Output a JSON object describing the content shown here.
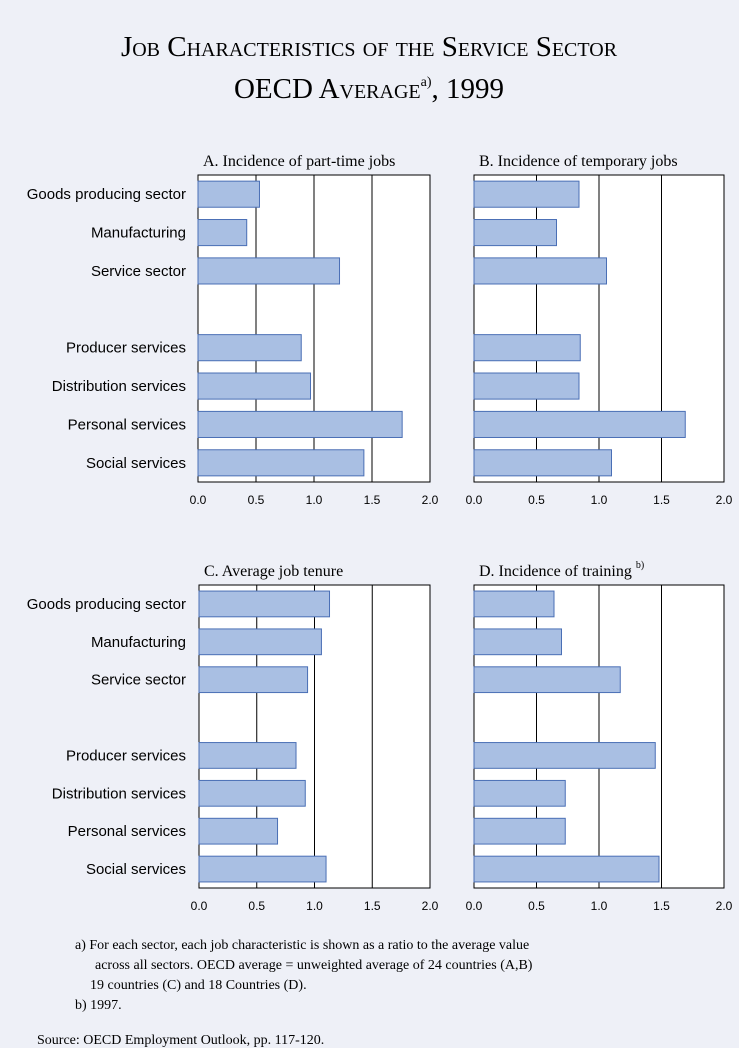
{
  "title": {
    "line1": "Job Characteristics of the Service Sector",
    "line2": "OECD Average",
    "line2_note": "a)",
    "line2_end": ", 1999"
  },
  "chart_data": [
    {
      "type": "hbar",
      "subtitle": "A. Incidence of part-time jobs",
      "categories": [
        "Goods producing sector",
        "Manufacturing",
        "Service sector",
        null,
        "Producer services",
        "Distribution services",
        "Personal services",
        "Social services"
      ],
      "values": [
        0.53,
        0.42,
        1.22,
        null,
        0.89,
        0.97,
        1.76,
        1.43
      ],
      "color": "#a9bfe3",
      "xlim": [
        0,
        2
      ],
      "xticks": [
        {
          "value": 0,
          "label": "0.0"
        },
        0.5,
        {
          "value": 1,
          "label": "1.0"
        },
        1.5,
        {
          "value": 2,
          "label": "2.0"
        }
      ],
      "grid": true
    },
    {
      "type": "hbar",
      "subtitle": "B. Incidence of temporary jobs",
      "values": [
        0.84,
        0.66,
        1.06,
        null,
        0.85,
        0.84,
        1.69,
        1.1
      ],
      "color": "#a9bfe3",
      "xlim": [
        0,
        2
      ],
      "xticks": [
        {
          "value": 0,
          "label": "0.0"
        },
        0.5,
        {
          "value": 1,
          "label": "1.0"
        },
        1.5,
        {
          "value": 2,
          "label": "2.0"
        }
      ],
      "grid": true
    },
    {
      "type": "hbar",
      "subtitle": "C. Average job tenure",
      "categories": [
        "Goods producing sector",
        "Manufacturing",
        "Service sector",
        null,
        "Producer services",
        "Distribution services",
        "Personal services",
        "Social services"
      ],
      "values": [
        1.13,
        1.06,
        0.94,
        null,
        0.84,
        0.92,
        0.68,
        1.1
      ],
      "color": "#a9bfe3",
      "xlim": [
        0,
        2
      ],
      "xticks": [
        {
          "value": 0,
          "label": "0.0"
        },
        0.5,
        {
          "value": 1,
          "label": "1.0"
        },
        1.5,
        {
          "value": 2,
          "label": "2.0"
        }
      ],
      "grid": true
    },
    {
      "type": "hbar",
      "subtitle": "D. Incidence of training",
      "subtitle_note": "b)",
      "values": [
        0.64,
        0.7,
        1.17,
        null,
        1.45,
        0.73,
        0.73,
        1.48
      ],
      "color": "#a9bfe3",
      "xlim": [
        0,
        2
      ],
      "xticks": [
        {
          "value": 0,
          "label": "0.0"
        },
        0.5,
        {
          "value": 1,
          "label": "1.0"
        },
        1.5,
        {
          "value": 2,
          "label": "2.0"
        }
      ],
      "grid": true
    }
  ],
  "notes": [
    "a) For each sector, each job characteristic is shown as a ratio to the average value",
    "across all sectors. OECD average = unweighted average of 24 countries (A,B)",
    "19 countries (C) and 18 Countries (D).",
    "b) 1997."
  ],
  "source": "Source: OECD Employment Outlook, pp. 117-120."
}
